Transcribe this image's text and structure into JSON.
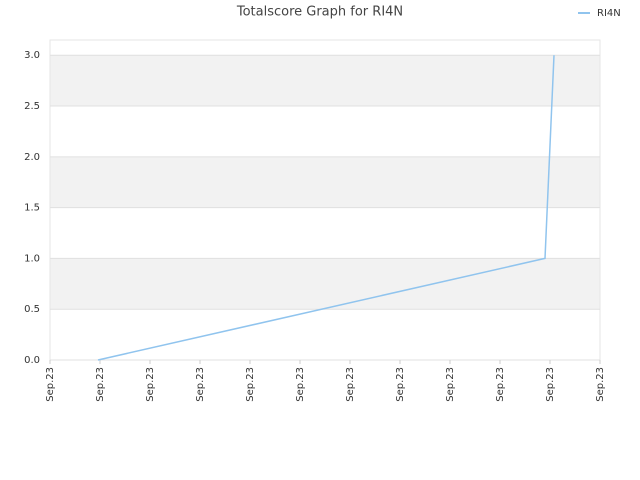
{
  "chart_data": {
    "type": "line",
    "title": "Totalscore Graph for RI4N",
    "x": [
      0.96,
      9.9,
      10.08
    ],
    "series": [
      {
        "name": "RI4N",
        "color": "#90c4ee",
        "values": [
          0,
          1,
          3
        ]
      }
    ],
    "xlim": [
      0,
      11
    ],
    "xticks": [
      {
        "value": 0,
        "label": "Sep.23"
      },
      {
        "value": 1,
        "label": "Sep.23"
      },
      {
        "value": 2,
        "label": "Sep.23"
      },
      {
        "value": 3,
        "label": "Sep.23"
      },
      {
        "value": 4,
        "label": "Sep.23"
      },
      {
        "value": 5,
        "label": "Sep.23"
      },
      {
        "value": 6,
        "label": "Sep.23"
      },
      {
        "value": 7,
        "label": "Sep.23"
      },
      {
        "value": 8,
        "label": "Sep.23"
      },
      {
        "value": 9,
        "label": "Sep.23"
      },
      {
        "value": 10,
        "label": "Sep.23"
      },
      {
        "value": 11,
        "label": "Sep.23"
      }
    ],
    "ylim": [
      0,
      3.15
    ],
    "yticks": [
      {
        "value": 0,
        "label": "0.0"
      },
      0.5,
      {
        "value": 1,
        "label": "1.0"
      },
      1.5,
      {
        "value": 2,
        "label": "2.0"
      },
      2.5,
      {
        "value": 3,
        "label": "3.0"
      }
    ],
    "grid": true,
    "legend": "top-right"
  }
}
